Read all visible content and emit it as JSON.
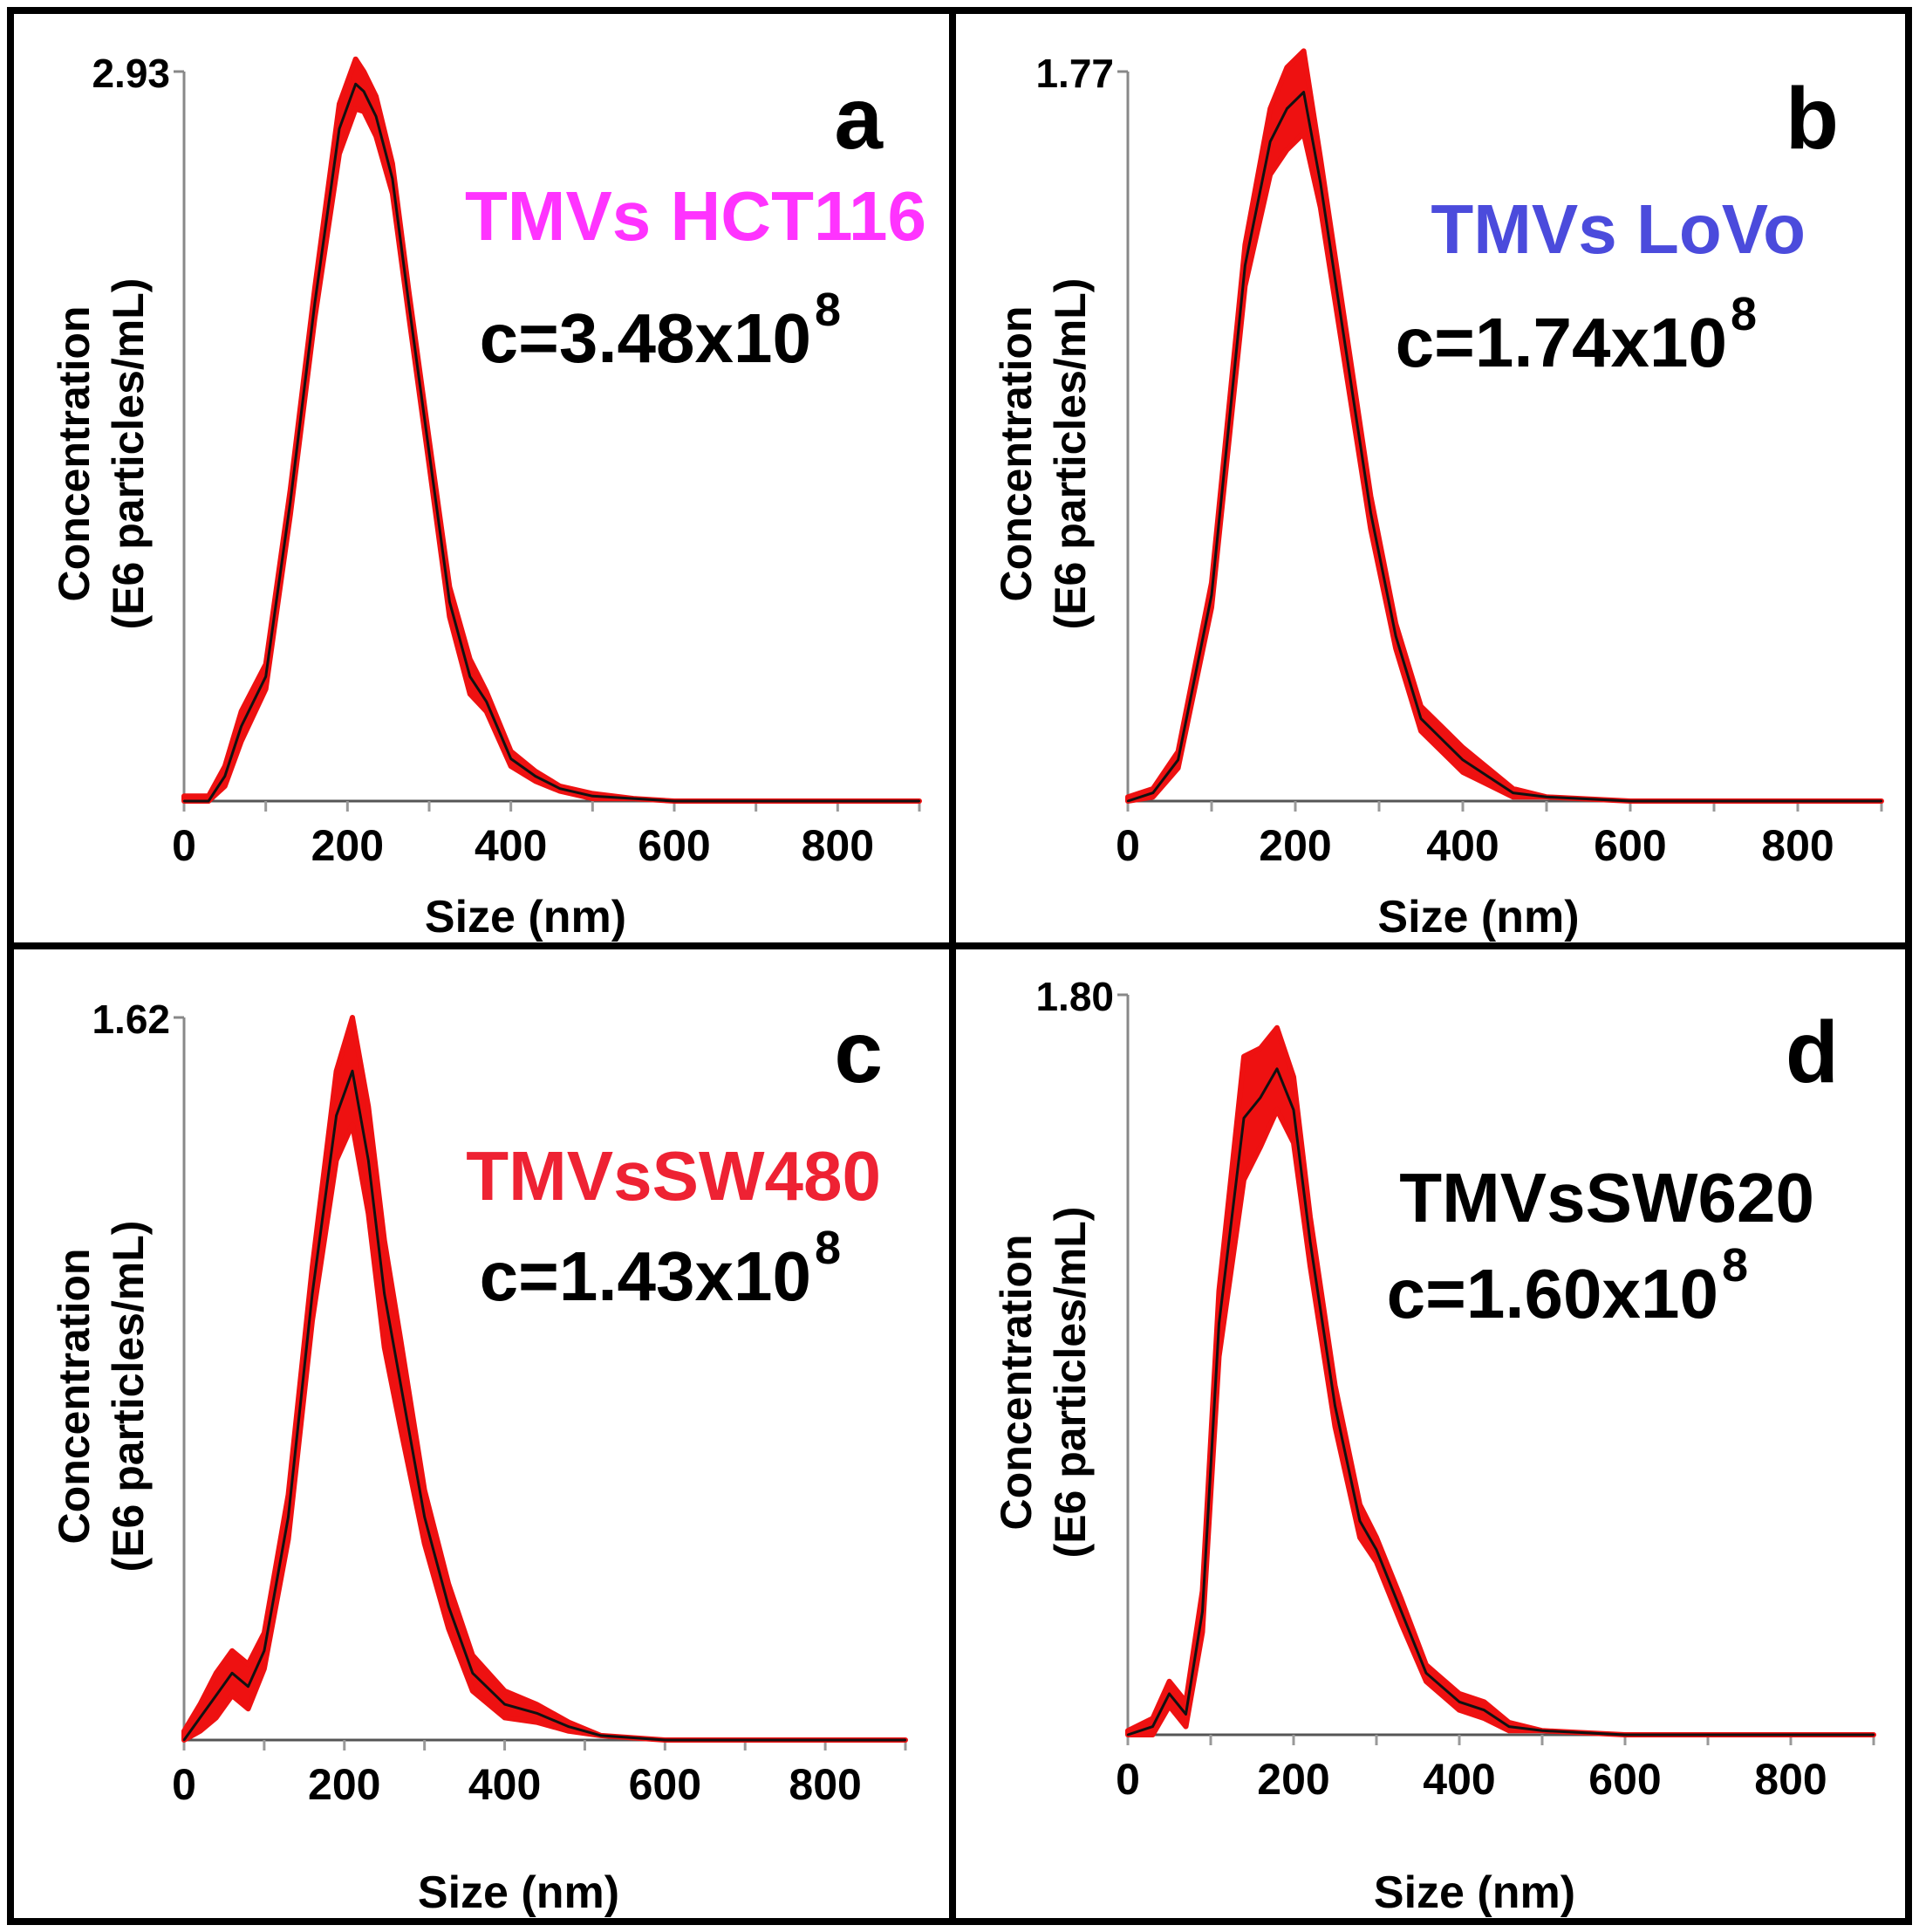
{
  "chart_data": [
    {
      "panel": "a",
      "type": "line",
      "label": "TMVs HCT116",
      "label_color": "#ff33ff",
      "concentration_base": "c=3.48x10",
      "concentration_exp": "8",
      "xlabel": "Size (nm)",
      "ylabel_line1": "Concentration",
      "ylabel_line2": "(E6 particles/mL)",
      "xlim": [
        0,
        900
      ],
      "ylim": [
        0,
        2.93
      ],
      "x_ticks": [
        0,
        200,
        400,
        600,
        800
      ],
      "y_tick_label": "2.93",
      "series": [
        {
          "name": "mean",
          "x": [
            0,
            30,
            50,
            70,
            100,
            130,
            160,
            190,
            210,
            220,
            235,
            255,
            275,
            300,
            325,
            350,
            370,
            400,
            430,
            460,
            500,
            550,
            600,
            700,
            900
          ],
          "y": [
            0,
            0.0,
            0.1,
            0.3,
            0.5,
            1.2,
            2.0,
            2.7,
            2.88,
            2.85,
            2.75,
            2.5,
            2.0,
            1.4,
            0.8,
            0.5,
            0.4,
            0.17,
            0.1,
            0.05,
            0.02,
            0.01,
            0.0,
            0.0,
            0.0
          ]
        }
      ],
      "error_band": [
        0.02,
        0.02,
        0.04,
        0.06,
        0.05,
        0.05,
        0.06,
        0.1,
        0.1,
        0.08,
        0.08,
        0.06,
        0.05,
        0.05,
        0.06,
        0.07,
        0.04,
        0.03,
        0.02,
        0.01,
        0.01,
        0.0,
        0.0,
        0.0,
        0.0
      ]
    },
    {
      "panel": "b",
      "type": "line",
      "label": "TMVs LoVo",
      "label_color": "#4b4bdc",
      "concentration_base": "c=1.74x10",
      "concentration_exp": "8",
      "xlabel": "Size (nm)",
      "ylabel_line1": "Concentration",
      "ylabel_line2": "(E6 particles/mL)",
      "xlim": [
        0,
        900
      ],
      "ylim": [
        0,
        1.77
      ],
      "x_ticks": [
        0,
        200,
        400,
        600,
        800
      ],
      "y_tick_label": "1.77",
      "series": [
        {
          "name": "mean",
          "x": [
            0,
            30,
            60,
            100,
            140,
            170,
            190,
            210,
            230,
            260,
            290,
            320,
            350,
            380,
            400,
            430,
            460,
            500,
            600,
            900
          ],
          "y": [
            0,
            0.02,
            0.1,
            0.5,
            1.3,
            1.6,
            1.68,
            1.72,
            1.5,
            1.1,
            0.7,
            0.4,
            0.2,
            0.14,
            0.1,
            0.06,
            0.02,
            0.01,
            0.0,
            0.0
          ]
        }
      ],
      "error_band": [
        0.01,
        0.01,
        0.02,
        0.03,
        0.05,
        0.08,
        0.1,
        0.1,
        0.06,
        0.05,
        0.04,
        0.03,
        0.03,
        0.03,
        0.03,
        0.02,
        0.01,
        0.0,
        0.0,
        0.0
      ]
    },
    {
      "panel": "c",
      "type": "line",
      "label": "TMVsSW480",
      "label_color": "#ee2233",
      "concentration_base": "c=1.43x10",
      "concentration_exp": "8",
      "xlabel": "Size (nm)",
      "ylabel_line1": "Concentration",
      "ylabel_line2": "(E6 particles/mL)",
      "xlim": [
        0,
        900
      ],
      "ylim": [
        0,
        1.62
      ],
      "x_ticks": [
        0,
        200,
        400,
        600,
        800
      ],
      "y_tick_label": "1.62",
      "series": [
        {
          "name": "mean",
          "x": [
            0,
            20,
            40,
            60,
            80,
            100,
            130,
            160,
            190,
            210,
            230,
            250,
            270,
            300,
            330,
            360,
            400,
            440,
            480,
            520,
            600,
            900
          ],
          "y": [
            0,
            0.05,
            0.1,
            0.15,
            0.12,
            0.2,
            0.5,
            1.0,
            1.4,
            1.5,
            1.3,
            1.0,
            0.8,
            0.5,
            0.3,
            0.15,
            0.08,
            0.06,
            0.03,
            0.01,
            0.0,
            0.0
          ]
        }
      ],
      "error_band": [
        0.02,
        0.03,
        0.05,
        0.05,
        0.05,
        0.04,
        0.05,
        0.06,
        0.1,
        0.12,
        0.12,
        0.12,
        0.1,
        0.06,
        0.05,
        0.04,
        0.03,
        0.02,
        0.01,
        0.0,
        0.0,
        0.0
      ]
    },
    {
      "panel": "d",
      "type": "line",
      "label": "TMVsSW620",
      "label_color": "#000000",
      "concentration_base": "c=1.60x10",
      "concentration_exp": "8",
      "xlabel": "Size (nm)",
      "ylabel_line1": "Concentration",
      "ylabel_line2": "(E6 particles/mL)",
      "xlim": [
        0,
        900
      ],
      "ylim": [
        0,
        1.8
      ],
      "x_ticks": [
        0,
        200,
        400,
        600,
        800
      ],
      "y_tick_label": "1.80",
      "series": [
        {
          "name": "mean",
          "x": [
            0,
            30,
            50,
            70,
            90,
            110,
            140,
            160,
            180,
            200,
            220,
            250,
            280,
            300,
            330,
            360,
            400,
            430,
            460,
            500,
            600,
            900
          ],
          "y": [
            0,
            0.02,
            0.1,
            0.05,
            0.3,
            1.0,
            1.5,
            1.55,
            1.62,
            1.52,
            1.2,
            0.8,
            0.52,
            0.45,
            0.3,
            0.15,
            0.08,
            0.06,
            0.02,
            0.01,
            0.0,
            0.0
          ]
        }
      ],
      "error_band": [
        0.01,
        0.02,
        0.03,
        0.03,
        0.05,
        0.08,
        0.15,
        0.12,
        0.1,
        0.08,
        0.06,
        0.05,
        0.04,
        0.03,
        0.03,
        0.02,
        0.02,
        0.02,
        0.01,
        0.0,
        0.0,
        0.0
      ]
    }
  ]
}
